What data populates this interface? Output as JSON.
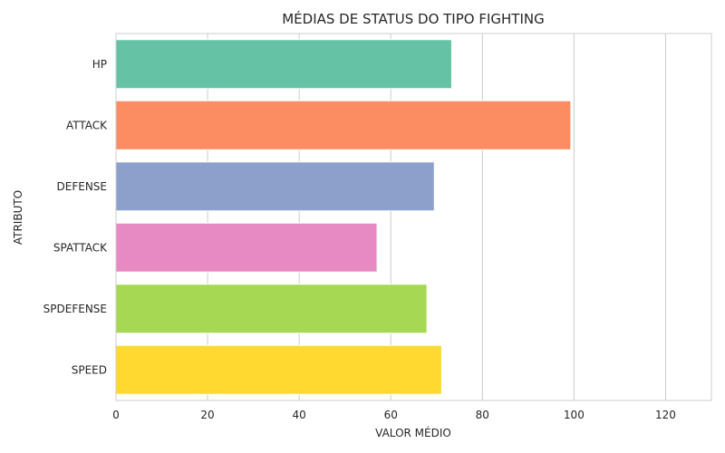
{
  "chart_data": {
    "type": "bar",
    "orientation": "horizontal",
    "title": "MÉDIAS DE STATUS DO TIPO FIGHTING",
    "xlabel": "VALOR MÉDIO",
    "ylabel": "ATRIBUTO",
    "categories": [
      "HP",
      "ATTACK",
      "DEFENSE",
      "SPATTACK",
      "SPDEFENSE",
      "SPEED"
    ],
    "values": [
      73.3,
      99.3,
      69.5,
      57.0,
      67.9,
      71.1
    ],
    "xlim": [
      0,
      130
    ],
    "xticks": [
      0,
      20,
      40,
      60,
      80,
      100,
      120
    ],
    "grid": true,
    "colors": [
      "#66c2a5",
      "#fc8d62",
      "#8da0cb",
      "#e78ac3",
      "#a6d854",
      "#ffd92f"
    ]
  }
}
